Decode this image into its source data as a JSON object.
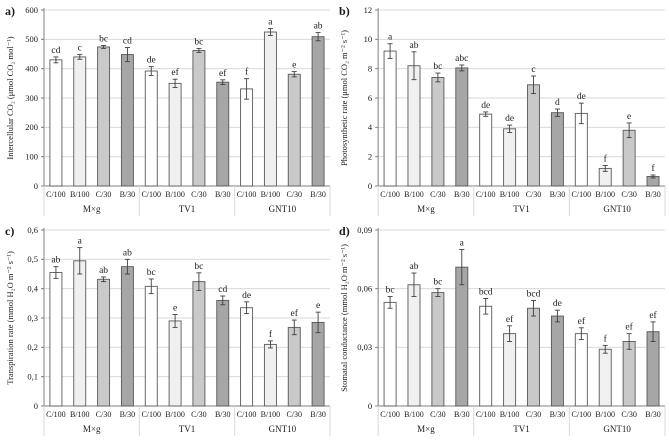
{
  "figure": {
    "background": "#ffffff"
  },
  "style": {
    "category_colors": [
      "#ffffff",
      "#f0f0f0",
      "#c9c9c9",
      "#a6a6a6"
    ],
    "bar_border_color": "#595959",
    "error_bar_color": "#404040",
    "gridline_color": "#d9d9d9",
    "axis_color": "#808080",
    "text_color": "#1a1a1a"
  },
  "chart_data": [
    {
      "panel_label": "a)",
      "type": "bar",
      "ylabel": "Intercellular CO₂ (μmol CO₂ mol⁻¹)",
      "ylim": [
        0,
        600
      ],
      "ytick_values": [
        0,
        100,
        200,
        300,
        400,
        500,
        600
      ],
      "ytick_labels": [
        "0",
        "100",
        "200",
        "300",
        "400",
        "500",
        "600"
      ],
      "grid": true,
      "legend": "none",
      "categories": [
        "C/100",
        "B/100",
        "C/30",
        "B/30"
      ],
      "groups": [
        {
          "label": "M×g",
          "values": [
            430,
            440,
            474,
            448
          ],
          "errors": [
            10,
            8,
            5,
            24
          ],
          "letters": [
            "cd",
            "c",
            "bc",
            "cd"
          ]
        },
        {
          "label": "TV1",
          "values": [
            392,
            350,
            462,
            354
          ],
          "errors": [
            15,
            14,
            7,
            8
          ],
          "letters": [
            "de",
            "ef",
            "bc",
            "ef"
          ]
        },
        {
          "label": "GNT10",
          "values": [
            331,
            525,
            381,
            509
          ],
          "errors": [
            35,
            12,
            9,
            14
          ],
          "letters": [
            "f",
            "a",
            "e",
            "ab"
          ]
        }
      ]
    },
    {
      "panel_label": "b)",
      "type": "bar",
      "ylabel": "Photosynthetic rate (μmol CO₂ m⁻² s⁻¹)",
      "ylim": [
        0,
        12
      ],
      "ytick_values": [
        0,
        2,
        4,
        6,
        8,
        10,
        12
      ],
      "ytick_labels": [
        "0",
        "2",
        "4",
        "6",
        "8",
        "10",
        "12"
      ],
      "grid": true,
      "legend": "none",
      "categories": [
        "C/100",
        "B/100",
        "C/30",
        "B/30"
      ],
      "groups": [
        {
          "label": "M×g",
          "values": [
            9.2,
            8.2,
            7.4,
            8.05
          ],
          "errors": [
            0.5,
            0.95,
            0.3,
            0.2
          ],
          "letters": [
            "a",
            "ab",
            "bc",
            "abc"
          ]
        },
        {
          "label": "TV1",
          "values": [
            4.9,
            3.9,
            6.9,
            5.0
          ],
          "errors": [
            0.15,
            0.25,
            0.6,
            0.25
          ],
          "letters": [
            "de",
            "de",
            "c",
            "d"
          ]
        },
        {
          "label": "GNT10",
          "values": [
            4.95,
            1.2,
            3.8,
            0.65
          ],
          "errors": [
            0.7,
            0.2,
            0.5,
            0.1
          ],
          "letters": [
            "de",
            "f",
            "e",
            "f"
          ]
        }
      ]
    },
    {
      "panel_label": "c)",
      "type": "bar",
      "ylabel": "Transpiration rate (mmol H₂O m⁻² s⁻¹)",
      "ylim": [
        0,
        0.6
      ],
      "ytick_values": [
        0,
        0.1,
        0.2,
        0.3,
        0.4,
        0.5,
        0.6
      ],
      "ytick_labels": [
        "0",
        "0,1",
        "0,2",
        "0,3",
        "0,4",
        "0,5",
        "0,6"
      ],
      "grid": true,
      "legend": "none",
      "categories": [
        "C/100",
        "B/100",
        "C/30",
        "B/30"
      ],
      "groups": [
        {
          "label": "M×g",
          "values": [
            0.455,
            0.495,
            0.432,
            0.475
          ],
          "errors": [
            0.02,
            0.045,
            0.008,
            0.025
          ],
          "letters": [
            "ab",
            "a",
            "ab",
            "ab"
          ]
        },
        {
          "label": "TV1",
          "values": [
            0.408,
            0.29,
            0.424,
            0.36
          ],
          "errors": [
            0.025,
            0.022,
            0.03,
            0.015
          ],
          "letters": [
            "bc",
            "e",
            "bc",
            "cd"
          ]
        },
        {
          "label": "GNT10",
          "values": [
            0.335,
            0.21,
            0.268,
            0.285
          ],
          "errors": [
            0.02,
            0.012,
            0.025,
            0.035
          ],
          "letters": [
            "de",
            "f",
            "ef",
            "e"
          ]
        }
      ]
    },
    {
      "panel_label": "d)",
      "type": "bar",
      "ylabel": "Stomatal conductance (mmol H₂O m⁻² s⁻¹)",
      "ylim": [
        0,
        0.09
      ],
      "ytick_values": [
        0,
        0.03,
        0.06,
        0.09
      ],
      "ytick_labels": [
        "0",
        "0,03",
        "0,06",
        "0,09"
      ],
      "grid": true,
      "legend": "none",
      "categories": [
        "C/100",
        "B/100",
        "C/30",
        "B/30"
      ],
      "groups": [
        {
          "label": "M×g",
          "values": [
            0.053,
            0.062,
            0.058,
            0.071
          ],
          "errors": [
            0.003,
            0.006,
            0.002,
            0.009
          ],
          "letters": [
            "bc",
            "ab",
            "bc",
            "a"
          ]
        },
        {
          "label": "TV1",
          "values": [
            0.051,
            0.037,
            0.05,
            0.046
          ],
          "errors": [
            0.004,
            0.004,
            0.004,
            0.003
          ],
          "letters": [
            "bcd",
            "ef",
            "bcd",
            "de"
          ]
        },
        {
          "label": "GNT10",
          "values": [
            0.037,
            0.029,
            0.033,
            0.038
          ],
          "errors": [
            0.003,
            0.002,
            0.004,
            0.005
          ],
          "letters": [
            "ef",
            "f",
            "ef",
            "ef"
          ]
        }
      ]
    }
  ]
}
